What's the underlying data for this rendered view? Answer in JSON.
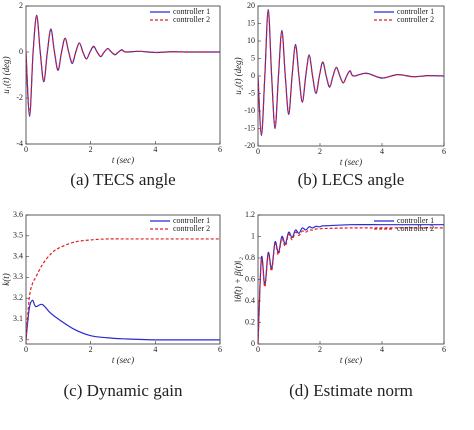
{
  "chart_data": [
    {
      "type": "line",
      "caption": "(a) TECS angle",
      "xlabel": "t (sec)",
      "ylabel": "u₁(t) (deg)",
      "xlim": [
        0,
        6
      ],
      "ylim": [
        -4,
        2
      ],
      "xticks": [
        0,
        2,
        4,
        6
      ],
      "yticks": [
        -4,
        -2,
        0,
        2
      ],
      "x": [
        0,
        0.11,
        0.22,
        0.33,
        0.44,
        0.55,
        0.66,
        0.77,
        0.88,
        0.99,
        1.1,
        1.21,
        1.32,
        1.43,
        1.54,
        1.65,
        1.76,
        1.87,
        1.98,
        2.09,
        2.2,
        2.31,
        2.42,
        2.53,
        2.64,
        2.75,
        2.86,
        2.97,
        3.08,
        3.5,
        4,
        4.5,
        5,
        5.5,
        6
      ],
      "series": [
        {
          "name": "controller 1",
          "color": "#2a2ad0",
          "dash": false,
          "values": [
            0,
            -2.8,
            0,
            1.6,
            0,
            -1.3,
            0,
            1.0,
            0,
            -0.8,
            0,
            0.6,
            0,
            -0.5,
            0,
            0.4,
            0,
            -0.3,
            0,
            0.25,
            0,
            -0.2,
            0,
            0.15,
            0,
            -0.12,
            0,
            0.1,
            0,
            0.03,
            -0.02,
            0.01,
            0,
            0,
            0
          ]
        },
        {
          "name": "controller 2",
          "color": "#e02020",
          "dash": true,
          "values": [
            0,
            -2.7,
            0,
            1.55,
            0,
            -1.25,
            0,
            0.95,
            0,
            -0.75,
            0,
            0.6,
            0,
            -0.45,
            0,
            0.38,
            0,
            -0.3,
            0,
            0.22,
            0,
            -0.18,
            0,
            0.14,
            0,
            -0.1,
            0,
            0.08,
            0,
            0.03,
            -0.02,
            0.01,
            0,
            0,
            0
          ]
        }
      ]
    },
    {
      "type": "line",
      "caption": "(b) LECS angle",
      "xlabel": "t (sec)",
      "ylabel": "u₂(t) (deg)",
      "xlim": [
        0,
        6
      ],
      "ylim": [
        -20,
        20
      ],
      "xticks": [
        0,
        2,
        4,
        6
      ],
      "yticks": [
        -20,
        -15,
        -10,
        -5,
        0,
        5,
        10,
        15,
        20
      ],
      "x": [
        0,
        0.11,
        0.22,
        0.33,
        0.44,
        0.55,
        0.66,
        0.77,
        0.88,
        0.99,
        1.1,
        1.21,
        1.32,
        1.43,
        1.54,
        1.65,
        1.76,
        1.87,
        1.98,
        2.09,
        2.2,
        2.31,
        2.42,
        2.53,
        2.64,
        2.75,
        2.86,
        2.97,
        3.08,
        3.5,
        4,
        4.5,
        5,
        5.5,
        6
      ],
      "series": [
        {
          "name": "controller 1",
          "color": "#2a2ad0",
          "dash": false,
          "values": [
            0,
            -17,
            0,
            19,
            0,
            -15,
            0,
            13,
            0,
            -11,
            0,
            9,
            0,
            -7.5,
            0,
            6,
            0,
            -5,
            0,
            4,
            0,
            -3.2,
            0,
            2.5,
            0,
            -2,
            0,
            1.5,
            0,
            0.8,
            -0.6,
            0.4,
            -0.2,
            0.1,
            0
          ]
        },
        {
          "name": "controller 2",
          "color": "#e02020",
          "dash": true,
          "values": [
            0,
            -16.5,
            0,
            18.5,
            0,
            -14.5,
            0,
            12.5,
            0,
            -10.5,
            0,
            8.7,
            0,
            -7.2,
            0,
            5.8,
            0,
            -4.8,
            0,
            3.8,
            0,
            -3,
            0,
            2.4,
            0,
            -1.9,
            0,
            1.4,
            0,
            0.7,
            -0.5,
            0.35,
            -0.2,
            0.1,
            0
          ]
        }
      ]
    },
    {
      "type": "line",
      "caption": "(c) Dynamic gain",
      "xlabel": "t (sec)",
      "ylabel": "k(t)",
      "xlim": [
        0,
        6
      ],
      "ylim": [
        2.98,
        3.6
      ],
      "xticks": [
        0,
        2,
        4,
        6
      ],
      "yticks": [
        3,
        3.1,
        3.2,
        3.3,
        3.4,
        3.5,
        3.6
      ],
      "x": [
        0,
        0.1,
        0.2,
        0.3,
        0.5,
        0.75,
        1,
        1.5,
        2,
        2.5,
        3,
        4,
        5,
        6
      ],
      "series": [
        {
          "name": "controller 1",
          "color": "#2a2ad0",
          "dash": false,
          "values": [
            3.0,
            3.15,
            3.19,
            3.16,
            3.17,
            3.13,
            3.1,
            3.05,
            3.02,
            3.01,
            3.005,
            3.0,
            3.0,
            3.0
          ]
        },
        {
          "name": "controller 2",
          "color": "#e02020",
          "dash": true,
          "values": [
            3.0,
            3.2,
            3.27,
            3.3,
            3.36,
            3.41,
            3.44,
            3.47,
            3.48,
            3.485,
            3.485,
            3.485,
            3.485,
            3.485
          ]
        }
      ]
    },
    {
      "type": "line",
      "caption": "(d) Estimate norm",
      "xlabel": "t (sec)",
      "ylabel": "‖θ̂(t) + β(t)‖₂",
      "xlim": [
        0,
        6
      ],
      "ylim": [
        0,
        1.2
      ],
      "xticks": [
        0,
        2,
        4,
        6
      ],
      "yticks": [
        0,
        0.2,
        0.4,
        0.6,
        0.8,
        1,
        1.2
      ],
      "x": [
        0,
        0.11,
        0.22,
        0.33,
        0.44,
        0.55,
        0.66,
        0.77,
        0.88,
        0.99,
        1.1,
        1.21,
        1.32,
        1.43,
        1.54,
        1.65,
        1.76,
        1.87,
        1.98,
        2.09,
        2.2,
        3,
        4,
        5,
        6
      ],
      "series": [
        {
          "name": "controller 1",
          "color": "#2a2ad0",
          "dash": false,
          "values": [
            0,
            0.8,
            0.55,
            0.85,
            0.7,
            0.95,
            0.85,
            1.0,
            0.93,
            1.04,
            0.99,
            1.06,
            1.03,
            1.08,
            1.06,
            1.09,
            1.08,
            1.095,
            1.09,
            1.1,
            1.1,
            1.11,
            1.11,
            1.11,
            1.11
          ]
        },
        {
          "name": "controller 2",
          "color": "#e02020",
          "dash": true,
          "values": [
            0,
            0.78,
            0.53,
            0.83,
            0.68,
            0.93,
            0.83,
            0.98,
            0.91,
            1.02,
            0.97,
            1.04,
            1.01,
            1.05,
            1.04,
            1.06,
            1.06,
            1.07,
            1.07,
            1.075,
            1.075,
            1.08,
            1.08,
            1.08,
            1.08
          ]
        }
      ]
    }
  ]
}
